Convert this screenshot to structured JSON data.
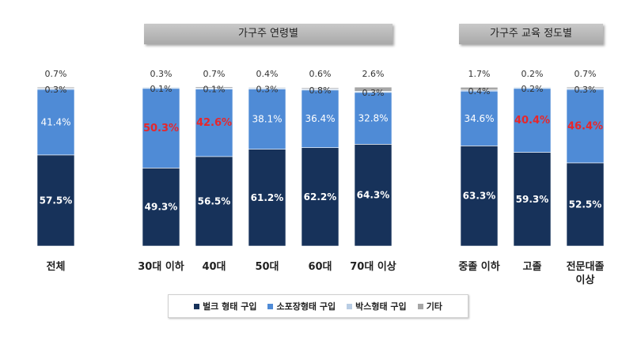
{
  "group_headers": {
    "age": "가구주 연령별",
    "education": "가구주 교육 정도별"
  },
  "colors": {
    "bulk": "#17325a",
    "smallpack": "#4f8bd6",
    "box": "#b9cde4",
    "other": "#a6a6a6",
    "highlight": "#e8262a",
    "label_dark": "#333333"
  },
  "chart_data": {
    "type": "bar",
    "stacked": true,
    "unit": "%",
    "categories": [
      "전체",
      "30대 이하",
      "40대",
      "50대",
      "60대",
      "70대 이상",
      "중졸 이하",
      "고졸",
      "전문대졸 이상"
    ],
    "series": [
      {
        "name": "벌크 형태 구입",
        "values": [
          57.5,
          49.3,
          56.5,
          61.2,
          62.2,
          64.3,
          63.3,
          59.3,
          52.5
        ]
      },
      {
        "name": "소포장형태 구입",
        "values": [
          41.4,
          50.3,
          42.6,
          38.1,
          36.4,
          32.8,
          34.6,
          40.4,
          46.4
        ],
        "highlighted": [
          "30대 이하",
          "40대",
          "고졸",
          "전문대졸 이상"
        ]
      },
      {
        "name": "박스형태 구입",
        "values": [
          0.3,
          0.1,
          0.1,
          0.3,
          0.8,
          0.3,
          0.4,
          0.2,
          0.3
        ]
      },
      {
        "name": "기타",
        "values": [
          0.7,
          0.3,
          0.7,
          0.4,
          0.6,
          2.6,
          1.7,
          0.2,
          0.7
        ]
      }
    ],
    "ylim": [
      0,
      100
    ]
  }
}
